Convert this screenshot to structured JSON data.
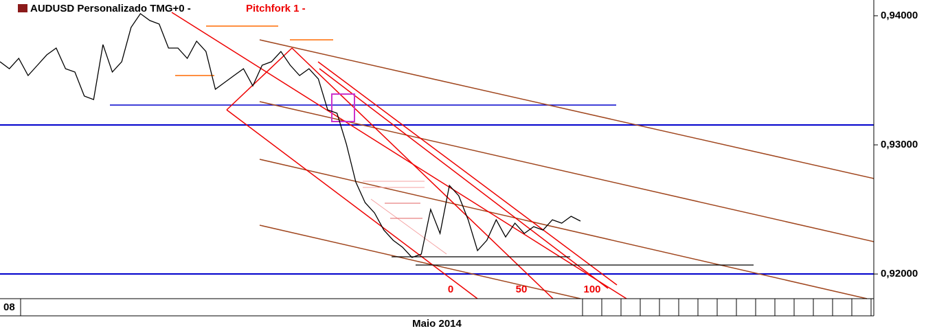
{
  "chart_data": {
    "type": "line",
    "title": "AUDUSD Personalizado TMG+0  -",
    "subtitle": "Pitchfork 1 -",
    "x_start_label": "08",
    "xlabel": "Maio 2014",
    "pitchfork_levels": [
      "0",
      "50",
      "100"
    ],
    "color": "#000000",
    "ylim": [
      0.91809,
      0.94122
    ],
    "yticks": [
      {
        "value": 0.92,
        "label": "0,92000"
      },
      {
        "value": 0.93,
        "label": "0,93000"
      },
      {
        "value": 0.94,
        "label": "0,94000"
      }
    ],
    "values": [
      0.93644,
      0.9359,
      0.9367,
      0.93537,
      0.93617,
      0.93697,
      0.9375,
      0.9359,
      0.93564,
      0.93378,
      0.93351,
      0.93777,
      0.93564,
      0.93644,
      0.9391,
      0.94016,
      0.93963,
      0.93936,
      0.9375,
      0.9375,
      0.9367,
      0.93803,
      0.93723,
      0.93431,
      0.93484,
      0.93537,
      0.9359,
      0.93457,
      0.93617,
      0.93644,
      0.93723,
      0.93617,
      0.93537,
      0.9359,
      0.93511,
      0.93271,
      0.93245,
      0.93005,
      0.92713,
      0.92553,
      0.92473,
      0.9234,
      0.92261,
      0.92207,
      0.92128,
      0.92154,
      0.925,
      0.92314,
      0.92686,
      0.92606,
      0.9242,
      0.92181,
      0.92261,
      0.9242,
      0.92287,
      0.92394,
      0.92314,
      0.92367,
      0.9234,
      0.9242,
      0.92394,
      0.92447,
      0.9241
    ]
  }
}
